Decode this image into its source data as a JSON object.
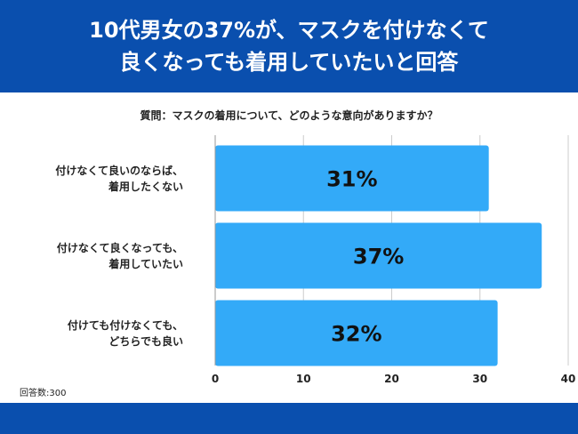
{
  "header": {
    "title_line1": "10代男女の37%が、マスクを付けなくて",
    "title_line2": "良くなっても着用していたいと回答"
  },
  "question": "質問：マスクの着用について、どのような意向がありますか？",
  "note": "回答数:300",
  "colors": {
    "header_bg": "#0a4fae",
    "bar": "#33aaf8",
    "grid": "#cccccc"
  },
  "chart_data": {
    "type": "bar",
    "orientation": "horizontal",
    "categories": [
      [
        "付けなくて良いのならば、",
        "着用したくない"
      ],
      [
        "付けなくて良くなっても、",
        "着用していたい"
      ],
      [
        "付けても付けなくても、",
        "どちらでも良い"
      ]
    ],
    "values": [
      31,
      37,
      32
    ],
    "value_labels": [
      "31%",
      "37%",
      "32%"
    ],
    "xlim": [
      0,
      40
    ],
    "x_ticks": [
      "0",
      "10",
      "20",
      "30",
      "40"
    ],
    "grid": true
  }
}
